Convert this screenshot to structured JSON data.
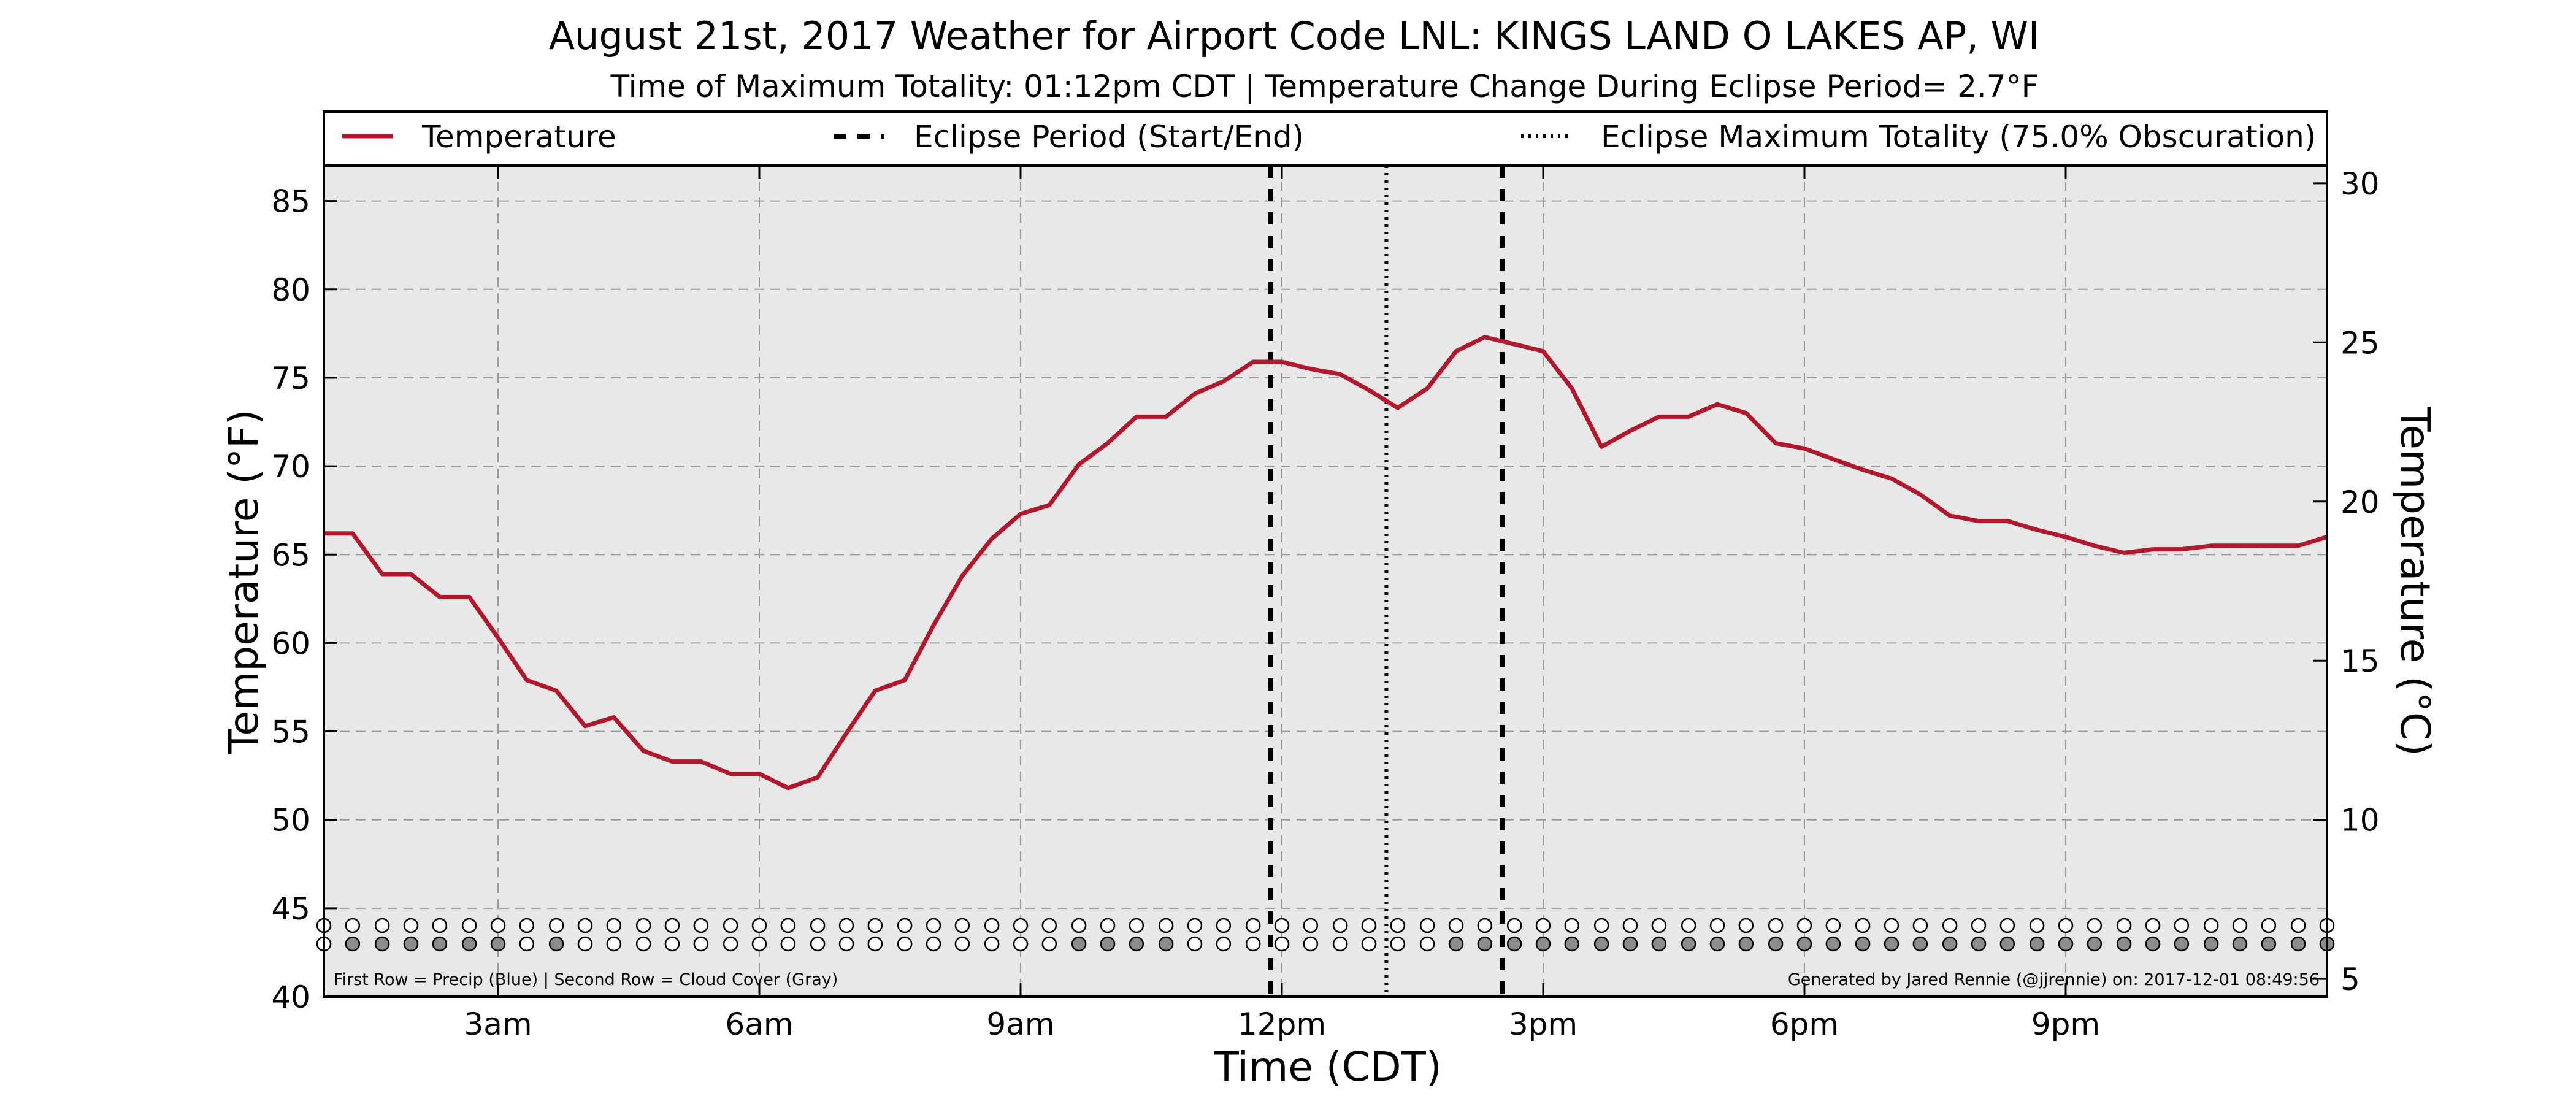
{
  "chart_data": {
    "type": "line",
    "title": "August 21st, 2017 Weather for Airport Code LNL: KINGS LAND O LAKES AP, WI",
    "subtitle": "Time of Maximum Totality: 01:12pm CDT | Temperature Change During Eclipse Period= 2.7°F",
    "xlabel": "Time (CDT)",
    "ylabel": "Temperature (°F)",
    "ylabel_right": "Temperature (°C)",
    "xlim": [
      1.0,
      24.0
    ],
    "ylim": [
      40,
      87
    ],
    "x_ticks": [
      {
        "x": 3,
        "label": "3am"
      },
      {
        "x": 6,
        "label": "6am"
      },
      {
        "x": 9,
        "label": "9am"
      },
      {
        "x": 12,
        "label": "12pm"
      },
      {
        "x": 15,
        "label": "3pm"
      },
      {
        "x": 18,
        "label": "6pm"
      },
      {
        "x": 21,
        "label": "9pm"
      }
    ],
    "y_ticks": [
      40,
      45,
      50,
      55,
      60,
      65,
      70,
      75,
      80,
      85
    ],
    "y_ticks_right": [
      5,
      10,
      15,
      20,
      25,
      30
    ],
    "grid": true,
    "legend_position": "top",
    "legend": [
      {
        "label": "Temperature",
        "style": "solid"
      },
      {
        "label": "Eclipse Period (Start/End)",
        "style": "dashed"
      },
      {
        "label": "Eclipse Maximum Totality (75.0% Obscuration)",
        "style": "dotted"
      }
    ],
    "series": [
      {
        "name": "Temperature",
        "color": "#b2182b",
        "x": [
          1.0,
          1.33,
          1.67,
          2.0,
          2.33,
          2.67,
          3.0,
          3.33,
          3.67,
          4.0,
          4.33,
          4.67,
          5.0,
          5.33,
          5.67,
          6.0,
          6.33,
          6.67,
          7.0,
          7.33,
          7.67,
          8.0,
          8.33,
          8.67,
          9.0,
          9.33,
          9.67,
          10.0,
          10.33,
          10.67,
          11.0,
          11.33,
          11.67,
          12.0,
          12.33,
          12.67,
          13.0,
          13.33,
          13.67,
          14.0,
          14.33,
          14.67,
          15.0,
          15.33,
          15.67,
          16.0,
          16.33,
          16.67,
          17.0,
          17.33,
          17.67,
          18.0,
          18.33,
          18.67,
          19.0,
          19.33,
          19.67,
          20.0,
          20.33,
          20.67,
          21.0,
          21.33,
          21.67,
          22.0,
          22.33,
          22.67,
          23.0,
          23.33,
          23.67,
          24.0
        ],
        "values": [
          66.2,
          66.2,
          63.9,
          63.9,
          62.6,
          62.6,
          60.3,
          57.9,
          57.3,
          55.3,
          55.8,
          53.9,
          53.3,
          53.3,
          52.6,
          52.6,
          51.8,
          52.4,
          54.9,
          57.3,
          57.9,
          61.0,
          63.8,
          65.9,
          67.3,
          67.8,
          70.1,
          71.3,
          72.8,
          72.8,
          74.1,
          74.8,
          75.9,
          75.9,
          75.5,
          75.2,
          74.3,
          73.3,
          74.4,
          76.5,
          77.3,
          76.9,
          76.5,
          74.4,
          71.1,
          72.0,
          72.8,
          72.8,
          73.5,
          73.0,
          71.3,
          71.0,
          70.4,
          69.8,
          69.3,
          68.4,
          67.2,
          66.9,
          66.9,
          66.4,
          66.0,
          65.5,
          65.1,
          65.3,
          65.3,
          65.5,
          65.5,
          65.5,
          65.5,
          66.0
        ]
      }
    ],
    "eclipse_start": 11.87,
    "eclipse_max": 13.2,
    "eclipse_end": 14.53,
    "precip_row": {
      "label": "Precip (Blue)",
      "values": [
        0,
        0,
        0,
        0,
        0,
        0,
        0,
        0,
        0,
        0,
        0,
        0,
        0,
        0,
        0,
        0,
        0,
        0,
        0,
        0,
        0,
        0,
        0,
        0,
        0,
        0,
        0,
        0,
        0,
        0,
        0,
        0,
        0,
        0,
        0,
        0,
        0,
        0,
        0,
        0,
        0,
        0,
        0,
        0,
        0,
        0,
        0,
        0,
        0,
        0,
        0,
        0,
        0,
        0,
        0,
        0,
        0,
        0,
        0,
        0,
        0,
        0,
        0,
        0,
        0,
        0,
        0,
        0,
        0,
        0
      ]
    },
    "cloud_row": {
      "label": "Cloud Cover (Gray)",
      "values": [
        0,
        1,
        1,
        1,
        1,
        1,
        1,
        0,
        1,
        0,
        0,
        0,
        0,
        0,
        0,
        0,
        0,
        0,
        0,
        0,
        0,
        0,
        0,
        0,
        0,
        0,
        1,
        1,
        1,
        1,
        0,
        0,
        0,
        0,
        0,
        0,
        0,
        0,
        0,
        1,
        1,
        1,
        1,
        1,
        1,
        1,
        1,
        1,
        1,
        1,
        1,
        1,
        1,
        1,
        1,
        1,
        1,
        1,
        1,
        1,
        1,
        1,
        1,
        1,
        1,
        1,
        1,
        1,
        1,
        1
      ]
    },
    "footnote_left": "First Row = Precip (Blue) | Second Row = Cloud Cover (Gray)",
    "footnote_right": "Generated by Jared Rennie (@jjrennie) on: 2017-12-01 08:49:56"
  }
}
